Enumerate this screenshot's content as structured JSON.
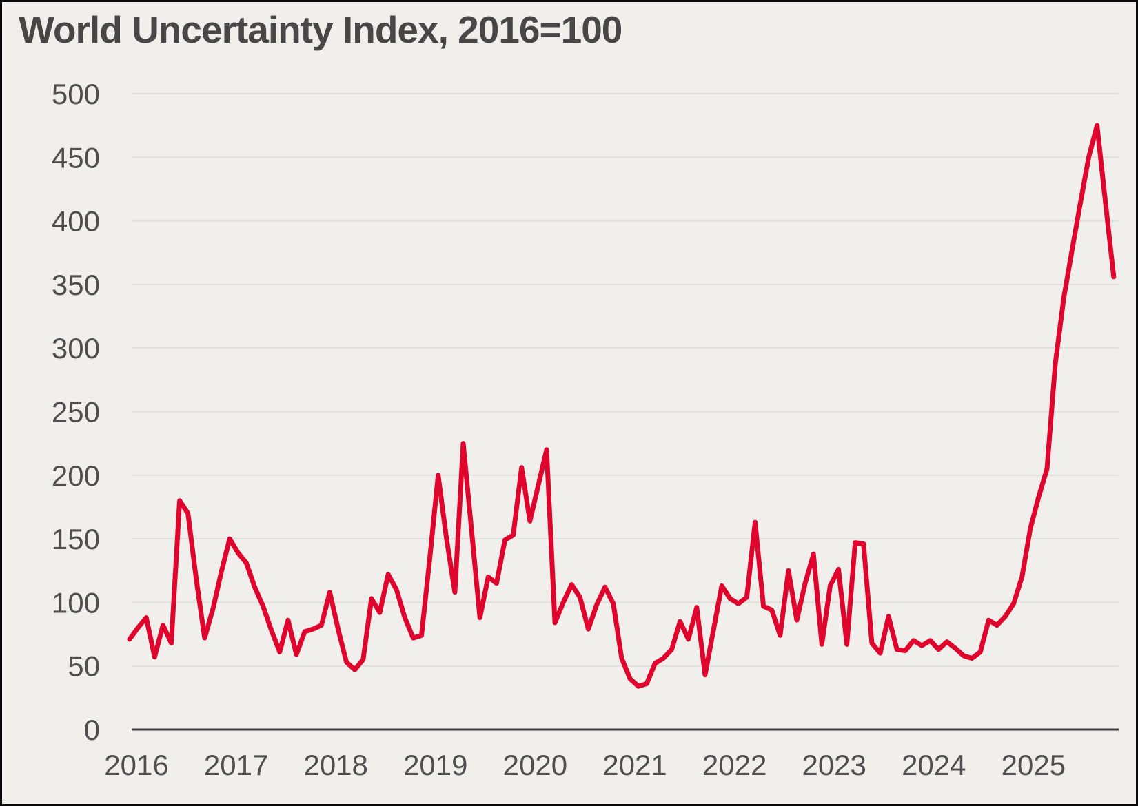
{
  "header": {
    "title": "World Uncertainty Index, 2016=100"
  },
  "colors": {
    "background": "#f1efec",
    "line": "#df052c",
    "grid": "#e1dfdc",
    "axis": "#3d3d3d",
    "text": "#4f4f4f",
    "title_text": "#474747",
    "border": "#0a0a0a"
  },
  "chart_data": {
    "type": "line",
    "title": "World Uncertainty Index, 2016=100",
    "legend": "none",
    "x_axis": {
      "frequency": "monthly",
      "start": "2016-01",
      "end": "2025-11",
      "tick_labels": [
        "2016",
        "2017",
        "2018",
        "2019",
        "2020",
        "2021",
        "2022",
        "2023",
        "2024",
        "2025"
      ]
    },
    "y_axis": {
      "ticks": [
        0,
        50,
        100,
        150,
        200,
        250,
        300,
        350,
        400,
        450,
        500
      ],
      "range": [
        0,
        500
      ],
      "gridlines": "horizontal"
    },
    "series": [
      {
        "name": "World Uncertainty Index (2016=100)",
        "color": "#df052c",
        "values": [
          71,
          80,
          88,
          57,
          82,
          68,
          180,
          170,
          118,
          72,
          95,
          124,
          150,
          139,
          131,
          112,
          97,
          78,
          61,
          86,
          59,
          77,
          79,
          82,
          108,
          79,
          53,
          47,
          55,
          103,
          92,
          122,
          110,
          88,
          72,
          74,
          135,
          200,
          150,
          108,
          225,
          157,
          88,
          120,
          115,
          149,
          153,
          206,
          164,
          192,
          220,
          84,
          100,
          114,
          104,
          79,
          98,
          112,
          99,
          56,
          40,
          34,
          36,
          52,
          56,
          63,
          85,
          71,
          96,
          43,
          78,
          113,
          103,
          99,
          104,
          163,
          97,
          94,
          74,
          125,
          86,
          115,
          138,
          67,
          113,
          126,
          67,
          147,
          146,
          68,
          60,
          89,
          63,
          62,
          70,
          66,
          70,
          63,
          69,
          64,
          58,
          56,
          61,
          86,
          82,
          89,
          99,
          120,
          158,
          183,
          205,
          288,
          339,
          377,
          414,
          450,
          475,
          415,
          356
        ]
      }
    ]
  }
}
